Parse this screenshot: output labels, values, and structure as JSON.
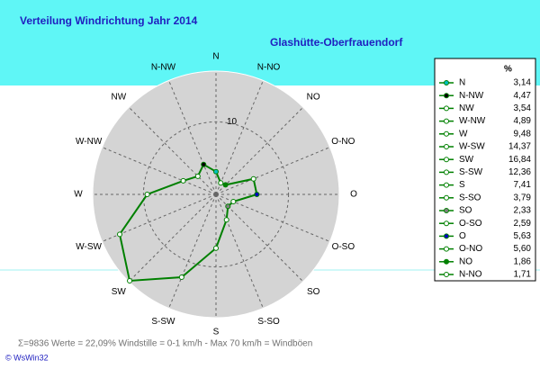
{
  "chart_data": {
    "type": "radar",
    "title": "Verteilung Windrichtung   Jahr 2014",
    "subtitle": "Glashütte-Oberfrauendorf",
    "legend_header": "%",
    "categories": [
      "N",
      "N-NW",
      "NW",
      "W-NW",
      "W",
      "W-SW",
      "SW",
      "S-SW",
      "S",
      "S-SO",
      "SO",
      "O-SO",
      "O",
      "O-NO",
      "NO",
      "N-NO"
    ],
    "values": [
      3.14,
      4.47,
      3.54,
      4.89,
      9.48,
      14.37,
      16.84,
      12.36,
      7.41,
      3.79,
      2.33,
      2.59,
      5.63,
      5.6,
      1.86,
      1.71
    ],
    "value_labels": [
      "3,14",
      "4,47",
      "3,54",
      "4,89",
      "9,48",
      "14,37",
      "16,84",
      "12,36",
      "7,41",
      "3,79",
      "2,33",
      "2,59",
      "5,63",
      "5,60",
      "1,86",
      "1,71"
    ],
    "color": "#008000",
    "marker_colors": [
      "#00c0c0",
      "#000000",
      "#ffffff",
      "#ffffff",
      "#ffffff",
      "#ffffff",
      "#ffffff",
      "#ffffff",
      "#ffffff",
      "#ffffff",
      "#808080",
      "#ffffff",
      "#0000c0",
      "#ffffff",
      "#008000",
      "#ffffff"
    ],
    "ylim": [
      0,
      17
    ],
    "yticks": [
      10
    ],
    "footer": "Σ=9836 Werte = 22,09% Windstille = 0-1 km/h - Max 70 km/h = Windböen",
    "copyright": "© WsWin32"
  }
}
